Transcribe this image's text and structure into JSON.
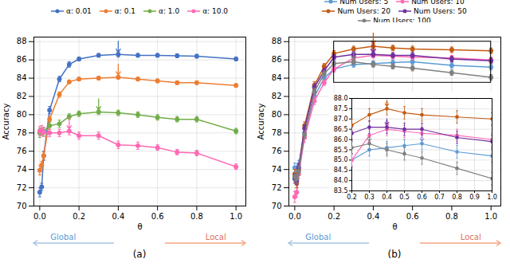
{
  "chart_data": [
    {
      "type": "line",
      "title": "(a)",
      "xlabel": "θ",
      "ylabel": "Accuracy",
      "xlim": [
        -0.03,
        1.05
      ],
      "ylim": [
        70,
        88.5
      ],
      "xticks": [
        {
          "value": 0,
          "label": "0.0"
        },
        0.2,
        0.4,
        0.6,
        0.8,
        {
          "value": 1,
          "label": "1.0"
        }
      ],
      "yticks": [
        70,
        72,
        74,
        76,
        78,
        80,
        82,
        84,
        86,
        88
      ],
      "grid": true,
      "legend": "top",
      "marker": "circle",
      "x": [
        0.0,
        0.01,
        0.02,
        0.05,
        0.1,
        0.15,
        0.2,
        0.3,
        0.4,
        0.5,
        0.6,
        0.7,
        0.8,
        1.0
      ],
      "series": [
        {
          "name": "α: 0.01",
          "color": "#4472c4",
          "values": [
            71.5,
            72.1,
            75.5,
            80.5,
            83.9,
            85.5,
            86.1,
            86.5,
            86.6,
            86.5,
            86.5,
            86.45,
            86.4,
            86.1
          ],
          "errors": [
            0.5,
            0.4,
            0.5,
            0.4,
            0.3,
            0.3,
            0.2,
            0.2,
            0.3,
            0.2,
            0.2,
            0.2,
            0.2,
            0.2
          ],
          "peak": {
            "x": 0.4,
            "y": 86.6
          }
        },
        {
          "name": "α: 0.1",
          "color": "#ed7d31",
          "values": [
            73.9,
            74.5,
            75.5,
            79.5,
            82.2,
            83.6,
            83.9,
            84.0,
            84.1,
            83.9,
            83.7,
            83.5,
            83.5,
            83.2
          ],
          "errors": [
            0.5,
            0.4,
            0.4,
            0.3,
            0.3,
            0.2,
            0.2,
            0.2,
            0.2,
            0.2,
            0.2,
            0.2,
            0.2,
            0.2
          ],
          "peak": {
            "x": 0.4,
            "y": 84.1
          }
        },
        {
          "name": "α: 1.0",
          "color": "#70ad47",
          "values": [
            78.0,
            78.1,
            78.2,
            78.8,
            79.0,
            79.8,
            80.1,
            80.3,
            80.2,
            80.0,
            79.7,
            79.5,
            79.5,
            78.2
          ],
          "errors": [
            0.5,
            0.4,
            0.4,
            0.4,
            0.4,
            0.3,
            0.3,
            0.3,
            0.3,
            0.3,
            0.3,
            0.3,
            0.3,
            0.3
          ],
          "peak": {
            "x": 0.3,
            "y": 80.3
          }
        },
        {
          "name": "α: 10.0",
          "color": "#ff69b4",
          "values": [
            78.2,
            78.3,
            78.1,
            78.0,
            78.0,
            78.2,
            77.7,
            77.7,
            76.7,
            76.6,
            76.4,
            75.9,
            75.8,
            74.3
          ],
          "errors": [
            0.5,
            0.5,
            0.5,
            0.4,
            0.4,
            0.4,
            0.4,
            0.4,
            0.4,
            0.4,
            0.3,
            0.3,
            0.3,
            0.3
          ],
          "peak": {
            "x": 0.15,
            "y": 78.2
          }
        }
      ],
      "annotations": [
        {
          "text": "Global",
          "color": "#5b9bd5",
          "arrow_color": "#a8c4e0"
        },
        {
          "text": "Local",
          "color": "#e07060",
          "arrow_color": "#f4a582"
        }
      ]
    },
    {
      "type": "line",
      "title": "(b)",
      "xlabel": "θ",
      "ylabel": "Accuracy",
      "xlim": [
        -0.03,
        1.05
      ],
      "ylim": [
        70,
        88.5
      ],
      "xticks": [
        {
          "value": 0,
          "label": "0.0"
        },
        0.2,
        0.4,
        0.6,
        0.8,
        {
          "value": 1,
          "label": "1.0"
        }
      ],
      "yticks": [
        70,
        72,
        74,
        76,
        78,
        80,
        82,
        84,
        86,
        88
      ],
      "grid": true,
      "legend": "top",
      "marker": "circle",
      "x": [
        0.0,
        0.01,
        0.02,
        0.05,
        0.1,
        0.15,
        0.2,
        0.3,
        0.4,
        0.5,
        0.6,
        0.8,
        1.0
      ],
      "series": [
        {
          "name": "Num Users: 5",
          "color": "#5b9bd5",
          "values": [
            74.2,
            73.5,
            74.5,
            78.0,
            82.0,
            84.0,
            85.0,
            85.5,
            85.6,
            85.7,
            85.8,
            85.4,
            85.2
          ],
          "errors": [
            0.5,
            0.5,
            0.5,
            0.4,
            0.4,
            0.3,
            0.3,
            0.3,
            0.3,
            0.3,
            0.3,
            0.3,
            0.3
          ],
          "peak": {
            "x": 0.6,
            "y": 85.8
          }
        },
        {
          "name": "Num Users: 10",
          "color": "#ff69b4",
          "values": [
            71.0,
            71.5,
            73.5,
            77.5,
            81.5,
            83.5,
            85.0,
            86.2,
            86.5,
            86.4,
            86.3,
            86.2,
            86.0
          ],
          "errors": [
            0.6,
            0.5,
            0.5,
            0.5,
            0.4,
            0.3,
            0.3,
            0.3,
            0.3,
            0.3,
            0.3,
            0.3,
            0.3
          ],
          "peak": {
            "x": 0.4,
            "y": 86.5
          }
        },
        {
          "name": "Num Users: 20",
          "color": "#c55a11",
          "values": [
            73.5,
            72.5,
            74.0,
            78.8,
            83.2,
            85.3,
            86.7,
            87.2,
            87.5,
            87.3,
            87.2,
            87.1,
            87.0
          ],
          "errors": [
            0.5,
            0.5,
            0.5,
            0.4,
            0.4,
            0.3,
            0.3,
            0.3,
            0.3,
            0.3,
            0.3,
            0.3,
            0.3
          ],
          "peak": {
            "x": 0.4,
            "y": 87.5
          }
        },
        {
          "name": "Num Users: 50",
          "color": "#7030a0",
          "values": [
            73.0,
            72.8,
            74.2,
            78.5,
            83.0,
            84.8,
            86.3,
            86.6,
            86.6,
            86.5,
            86.5,
            86.1,
            85.9
          ],
          "errors": [
            0.5,
            0.5,
            0.5,
            0.4,
            0.4,
            0.3,
            0.3,
            0.3,
            0.3,
            0.3,
            0.3,
            0.3,
            0.3
          ],
          "peak": {
            "x": 0.4,
            "y": 86.6
          }
        },
        {
          "name": "Num Users: 100",
          "color": "#808080",
          "values": [
            73.2,
            73.0,
            73.8,
            77.8,
            82.5,
            84.5,
            85.6,
            85.8,
            85.5,
            85.3,
            85.1,
            84.6,
            84.1
          ],
          "errors": [
            0.5,
            0.5,
            0.5,
            0.4,
            0.4,
            0.3,
            0.3,
            0.3,
            0.3,
            0.3,
            0.3,
            0.3,
            0.3
          ],
          "peak": {
            "x": 0.3,
            "y": 85.8
          }
        }
      ],
      "annotations": [
        {
          "text": "Global",
          "color": "#5b9bd5",
          "arrow_color": "#a8c4e0"
        },
        {
          "text": "Local",
          "color": "#e07060",
          "arrow_color": "#f4a582"
        }
      ]
    },
    {
      "type": "line",
      "xlim": [
        0.2,
        1.0
      ],
      "ylim": [
        83.5,
        88.0
      ],
      "xticks": [
        0.2,
        0.3,
        0.4,
        0.5,
        0.6,
        0.7,
        0.8,
        0.9,
        {
          "value": 1,
          "label": "1.0"
        }
      ],
      "yticks": [
        83.5,
        {
          "value": 84,
          "label": "84.0"
        },
        84.5,
        {
          "value": 85,
          "label": "85.0"
        },
        85.5,
        {
          "value": 86,
          "label": "86.0"
        },
        86.5,
        {
          "value": 87,
          "label": "87.0"
        },
        87.5,
        {
          "value": 88,
          "label": "88.0"
        }
      ],
      "grid": true,
      "marker": "circle",
      "x": [
        0.2,
        0.3,
        0.4,
        0.5,
        0.6,
        0.8,
        1.0
      ],
      "series": [
        {
          "color": "#5b9bd5",
          "values": [
            85.0,
            85.5,
            85.6,
            85.7,
            85.8,
            85.4,
            85.2
          ],
          "errors": [
            0.3,
            0.3,
            0.3,
            0.3,
            0.3,
            0.3,
            0.3
          ],
          "peak": {
            "x": 0.6,
            "y": 85.8
          }
        },
        {
          "color": "#ff69b4",
          "values": [
            85.0,
            86.2,
            86.5,
            86.4,
            86.3,
            86.2,
            86.0
          ],
          "errors": [
            0.3,
            0.3,
            0.3,
            0.3,
            0.3,
            0.3,
            0.3
          ],
          "peak": {
            "x": 0.4,
            "y": 86.5
          }
        },
        {
          "color": "#c55a11",
          "values": [
            86.7,
            87.2,
            87.5,
            87.3,
            87.2,
            87.1,
            87.0
          ],
          "errors": [
            0.3,
            0.3,
            0.3,
            0.3,
            0.3,
            0.3,
            0.3
          ],
          "peak": {
            "x": 0.4,
            "y": 87.5
          }
        },
        {
          "color": "#7030a0",
          "values": [
            86.3,
            86.6,
            86.6,
            86.5,
            86.5,
            86.1,
            85.9
          ],
          "errors": [
            0.3,
            0.3,
            0.3,
            0.3,
            0.3,
            0.3,
            0.3
          ],
          "peak": {
            "x": 0.4,
            "y": 86.6
          }
        },
        {
          "color": "#808080",
          "values": [
            85.6,
            85.8,
            85.5,
            85.3,
            85.1,
            84.6,
            84.1
          ],
          "errors": [
            0.3,
            0.3,
            0.3,
            0.3,
            0.3,
            0.3,
            0.3
          ],
          "peak": {
            "x": 0.3,
            "y": 85.8
          }
        }
      ]
    }
  ]
}
